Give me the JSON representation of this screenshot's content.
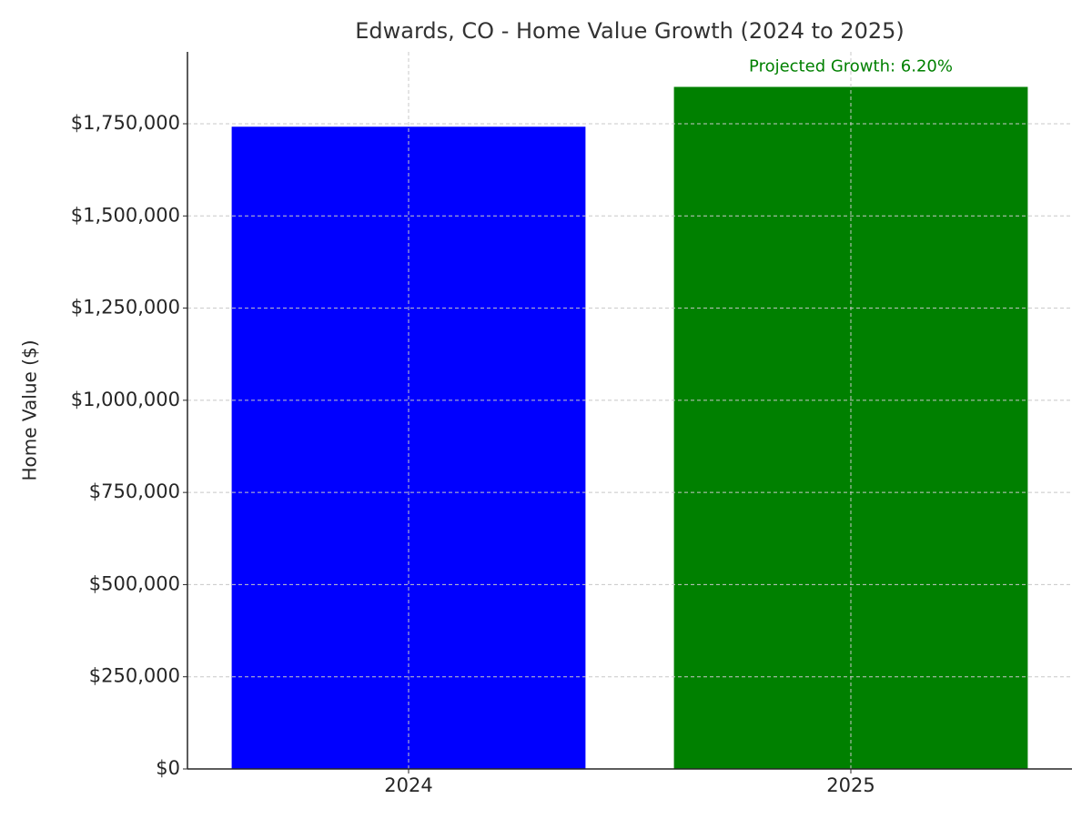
{
  "chart_data": {
    "type": "bar",
    "title": "Edwards, CO - Home Value Growth (2024 to 2025)",
    "ylabel": "Home Value ($)",
    "annotation": "Projected Growth: 6.20%",
    "annotation_color": "#008000",
    "categories": [
      "2024",
      "2025"
    ],
    "values": [
      1742000,
      1850000
    ],
    "colors": [
      "#0000ff",
      "#008000"
    ],
    "ylim": [
      0,
      1945000
    ],
    "yticks": [
      {
        "value": 0,
        "label": "$0"
      },
      {
        "value": 250000,
        "label": "$250,000"
      },
      {
        "value": 500000,
        "label": "$500,000"
      },
      {
        "value": 750000,
        "label": "$750,000"
      },
      {
        "value": 1000000,
        "label": "$1,000,000"
      },
      {
        "value": 1250000,
        "label": "$1,250,000"
      },
      {
        "value": 1500000,
        "label": "$1,500,000"
      },
      {
        "value": 1750000,
        "label": "$1,750,000"
      }
    ],
    "grid": true
  }
}
